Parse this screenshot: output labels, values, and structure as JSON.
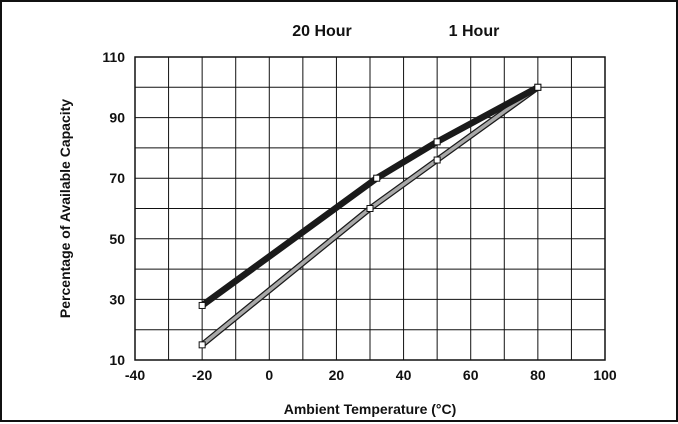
{
  "chart_data": {
    "type": "line",
    "title": "",
    "xlabel": "Ambient Temperature (°C)",
    "ylabel": "Percentage of Available Capacity",
    "xlim": [
      -40,
      100
    ],
    "ylim": [
      10,
      110
    ],
    "x_ticks": [
      -40,
      -20,
      0,
      20,
      40,
      60,
      80,
      100
    ],
    "y_ticks": [
      10,
      30,
      50,
      70,
      90,
      110
    ],
    "grid": true,
    "series": [
      {
        "name": "20 Hour",
        "color": "#1a1a1a",
        "points": [
          [
            -20,
            28
          ],
          [
            32,
            70
          ],
          [
            50,
            82
          ],
          [
            80,
            100
          ]
        ]
      },
      {
        "name": "1 Hour",
        "color": "#a8a8a8",
        "points": [
          [
            -20,
            15
          ],
          [
            30,
            60
          ],
          [
            50,
            76
          ],
          [
            80,
            100
          ]
        ]
      }
    ]
  }
}
